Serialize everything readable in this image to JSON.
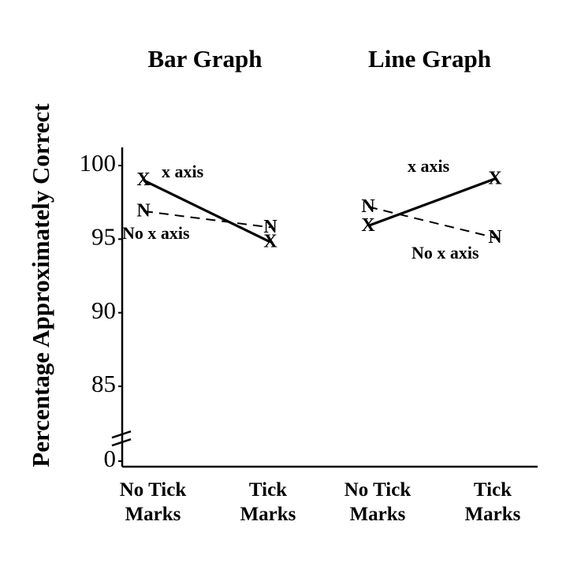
{
  "chart_data": [
    {
      "type": "line",
      "title": "Bar Graph",
      "y_label": "Percentage Approximately Correct",
      "categories": [
        "No Tick Marks",
        "Tick Marks"
      ],
      "series": [
        {
          "name": "x axis",
          "marker": "X",
          "style": "solid",
          "color": "#000000",
          "values": [
            99.0,
            94.8
          ]
        },
        {
          "name": "No x axis",
          "marker": "N",
          "style": "dashed",
          "color": "#000000",
          "values": [
            96.9,
            95.8
          ]
        }
      ],
      "ylim": [
        0,
        100
      ],
      "axis_break": [
        0,
        83
      ],
      "yticks": [
        0,
        85,
        90,
        95,
        100
      ]
    },
    {
      "type": "line",
      "title": "Line Graph",
      "categories": [
        "No Tick Marks",
        "Tick Marks"
      ],
      "series": [
        {
          "name": "x axis",
          "marker": "X",
          "style": "solid",
          "color": "#000000",
          "values": [
            95.9,
            99.1
          ]
        },
        {
          "name": "No x axis",
          "marker": "N",
          "style": "dashed",
          "color": "#000000",
          "values": [
            97.2,
            95.1
          ]
        }
      ],
      "ylim": [
        0,
        100
      ],
      "axis_break": [
        0,
        83
      ]
    }
  ]
}
